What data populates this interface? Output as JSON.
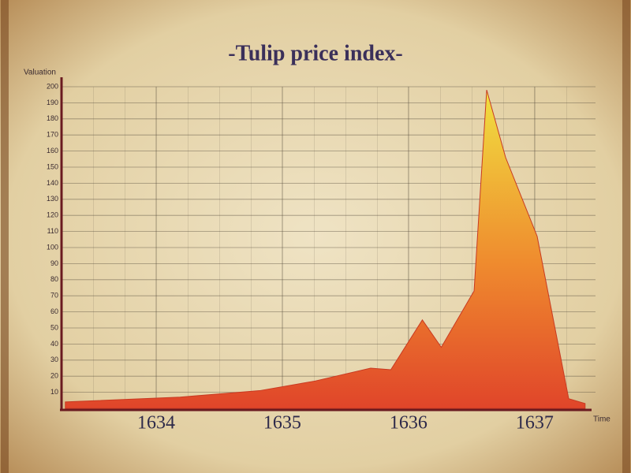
{
  "chart_data": {
    "type": "area",
    "title": "-Tulip price index-",
    "y_label": "Valuation",
    "x_label": "Time",
    "x": [
      1633.28,
      1634.19,
      1634.82,
      1635.26,
      1635.7,
      1635.86,
      1636.11,
      1636.26,
      1636.52,
      1636.62,
      1636.77,
      1637.02,
      1637.27,
      1637.4
    ],
    "values": [
      4,
      7,
      11,
      17,
      25,
      24,
      55,
      38,
      73,
      198,
      156,
      107,
      6,
      3
    ],
    "xlim": [
      1633.25,
      1637.42
    ],
    "xticks": [
      1634,
      1635,
      1636,
      1637
    ],
    "ylim": [
      0,
      200
    ],
    "yticks": [
      10,
      20,
      30,
      40,
      50,
      60,
      70,
      80,
      90,
      100,
      110,
      120,
      130,
      140,
      150,
      160,
      170,
      180,
      190,
      200
    ],
    "grid": true,
    "colors": [
      "#f0e040",
      "#e0452a"
    ]
  }
}
